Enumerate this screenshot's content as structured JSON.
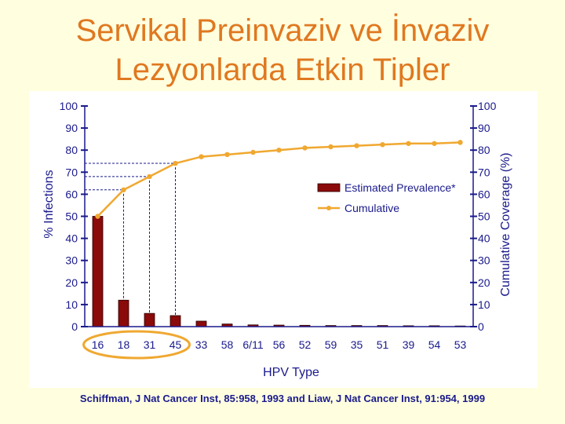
{
  "slide": {
    "title_line1": "Servikal Preinvaziv ve İnvaziv",
    "title_line2": "Lezyonlarda  Etkin Tipler",
    "citation": "Schiffman, J Nat Cancer Inst, 85:958, 1993 and Liaw, J Nat Cancer Inst, 91:954, 1999"
  },
  "chart_data": {
    "type": "bar",
    "title": "",
    "xlabel": "HPV Type",
    "ylabel": "% Infections",
    "y2label": "Cumulative Coverage (%)",
    "ylim": [
      0,
      100
    ],
    "y2lim": [
      0,
      100
    ],
    "yticks": [
      0,
      10,
      20,
      30,
      40,
      50,
      60,
      70,
      80,
      90,
      100
    ],
    "categories": [
      "16",
      "18",
      "31",
      "45",
      "33",
      "58",
      "6/11",
      "56",
      "52",
      "59",
      "35",
      "51",
      "39",
      "54",
      "53"
    ],
    "series": [
      {
        "name": "Estimated Prevalence*",
        "kind": "bar",
        "color": "#8B0A0A",
        "values": [
          50,
          12,
          6,
          5,
          2.5,
          1.2,
          0.8,
          0.7,
          0.6,
          0.5,
          0.5,
          0.5,
          0.4,
          0.4,
          0.3
        ]
      },
      {
        "name": "Cumulative",
        "kind": "line",
        "color": "#F0A830",
        "values": [
          50,
          62,
          68,
          74,
          77,
          78,
          79,
          80,
          81,
          81.5,
          82,
          82.5,
          83,
          83,
          83.5
        ]
      }
    ],
    "legend": "right-center",
    "grid": false,
    "highlighted_categories": [
      "16",
      "18",
      "31",
      "45"
    ],
    "highlight_color": "#F0A830",
    "axis_color": "#1A1A8C"
  }
}
